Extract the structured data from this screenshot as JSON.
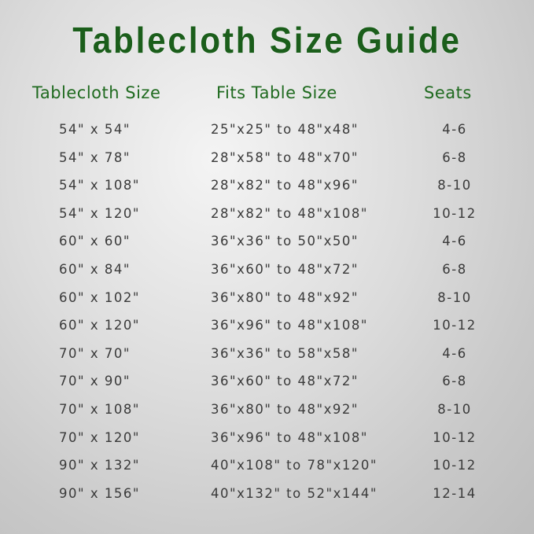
{
  "title": "Tablecloth Size Guide",
  "headers": {
    "size": "Tablecloth Size",
    "fits": "Fits Table Size",
    "seats": "Seats"
  },
  "colors": {
    "title": "#1b5e1b",
    "header": "#1f6a1f",
    "text": "#3a3a3a"
  },
  "rows": [
    {
      "size": "54\" x 54\"",
      "fits": "25\"x25\" to 48\"x48\"",
      "seats": "4-6"
    },
    {
      "size": "54\" x 78\"",
      "fits": "28\"x58\" to 48\"x70\"",
      "seats": "6-8"
    },
    {
      "size": "54\" x 108\"",
      "fits": "28\"x82\" to 48\"x96\"",
      "seats": "8-10"
    },
    {
      "size": "54\" x 120\"",
      "fits": "28\"x82\" to 48\"x108\"",
      "seats": "10-12"
    },
    {
      "size": "60\" x 60\"",
      "fits": "36\"x36\" to 50\"x50\"",
      "seats": "4-6"
    },
    {
      "size": "60\" x 84\"",
      "fits": "36\"x60\" to 48\"x72\"",
      "seats": "6-8"
    },
    {
      "size": "60\" x 102\"",
      "fits": "36\"x80\" to 48\"x92\"",
      "seats": "8-10"
    },
    {
      "size": "60\" x 120\"",
      "fits": "36\"x96\" to 48\"x108\"",
      "seats": "10-12"
    },
    {
      "size": "70\" x 70\"",
      "fits": "36\"x36\" to 58\"x58\"",
      "seats": "4-6"
    },
    {
      "size": "70\" x 90\"",
      "fits": "36\"x60\" to 48\"x72\"",
      "seats": "6-8"
    },
    {
      "size": "70\" x 108\"",
      "fits": "36\"x80\" to 48\"x92\"",
      "seats": "8-10"
    },
    {
      "size": "70\" x 120\"",
      "fits": "36\"x96\" to 48\"x108\"",
      "seats": "10-12"
    },
    {
      "size": "90\" x 132\"",
      "fits": "40\"x108\" to 78\"x120\"",
      "seats": "10-12"
    },
    {
      "size": "90\" x 156\"",
      "fits": "40\"x132\" to 52\"x144\"",
      "seats": "12-14"
    }
  ]
}
